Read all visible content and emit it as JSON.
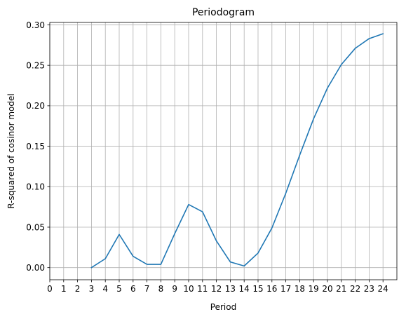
{
  "chart_data": {
    "type": "line",
    "title": "Periodogram",
    "xlabel": "Period",
    "ylabel": "R-squared of cosinor model",
    "xlim": [
      0,
      25
    ],
    "ylim": [
      -0.015,
      0.303
    ],
    "x_ticks": [
      0,
      1,
      2,
      3,
      4,
      5,
      6,
      7,
      8,
      9,
      10,
      11,
      12,
      13,
      14,
      15,
      16,
      17,
      18,
      19,
      20,
      21,
      22,
      23,
      24
    ],
    "y_ticks": [
      0.0,
      0.05,
      0.1,
      0.15,
      0.2,
      0.25,
      0.3
    ],
    "y_tick_labels": [
      "0.00",
      "0.05",
      "0.10",
      "0.15",
      "0.20",
      "0.25",
      "0.30"
    ],
    "grid": true,
    "series": [
      {
        "color": "#1f77b4",
        "x": [
          3,
          4,
          5,
          6,
          7,
          8,
          9,
          10,
          11,
          12,
          13,
          14,
          15,
          16,
          17,
          18,
          19,
          20,
          21,
          22,
          23,
          24
        ],
        "y": [
          0.0,
          0.011,
          0.041,
          0.014,
          0.004,
          0.004,
          0.042,
          0.078,
          0.069,
          0.033,
          0.007,
          0.002,
          0.018,
          0.049,
          0.092,
          0.139,
          0.184,
          0.222,
          0.251,
          0.271,
          0.283,
          0.289
        ]
      }
    ]
  }
}
